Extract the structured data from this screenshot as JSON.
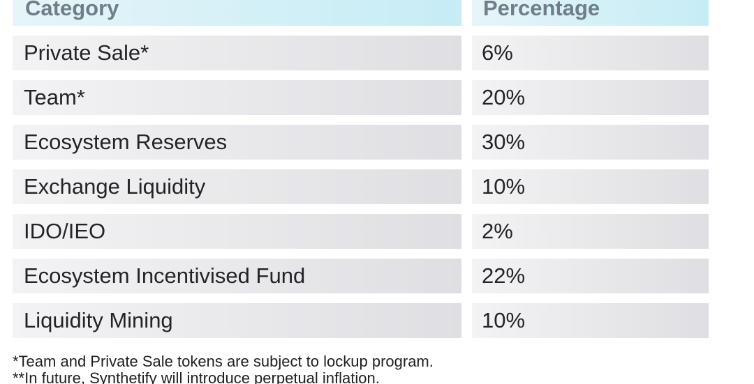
{
  "table": {
    "header": {
      "category": "Category",
      "percentage": "Percentage"
    },
    "rows": [
      {
        "category": "Private Sale*",
        "percentage": "6%"
      },
      {
        "category": "Team*",
        "percentage": "20%"
      },
      {
        "category": "Ecosystem Reserves",
        "percentage": "30%"
      },
      {
        "category": "Exchange Liquidity",
        "percentage": "10%"
      },
      {
        "category": "IDO/IEO",
        "percentage": "2%"
      },
      {
        "category": "Ecosystem Incentivised Fund",
        "percentage": "22%"
      },
      {
        "category": "Liquidity Mining",
        "percentage": "10%"
      }
    ]
  },
  "footnotes": [
    "*Team and Private Sale tokens are subject to lockup program.",
    "**In future, Synthetify will introduce perpetual inflation."
  ],
  "colors": {
    "header_bg": "#d3f0f7",
    "header_text": "#707e8a",
    "row_bg": "#e9e9ec",
    "text": "#222428"
  }
}
